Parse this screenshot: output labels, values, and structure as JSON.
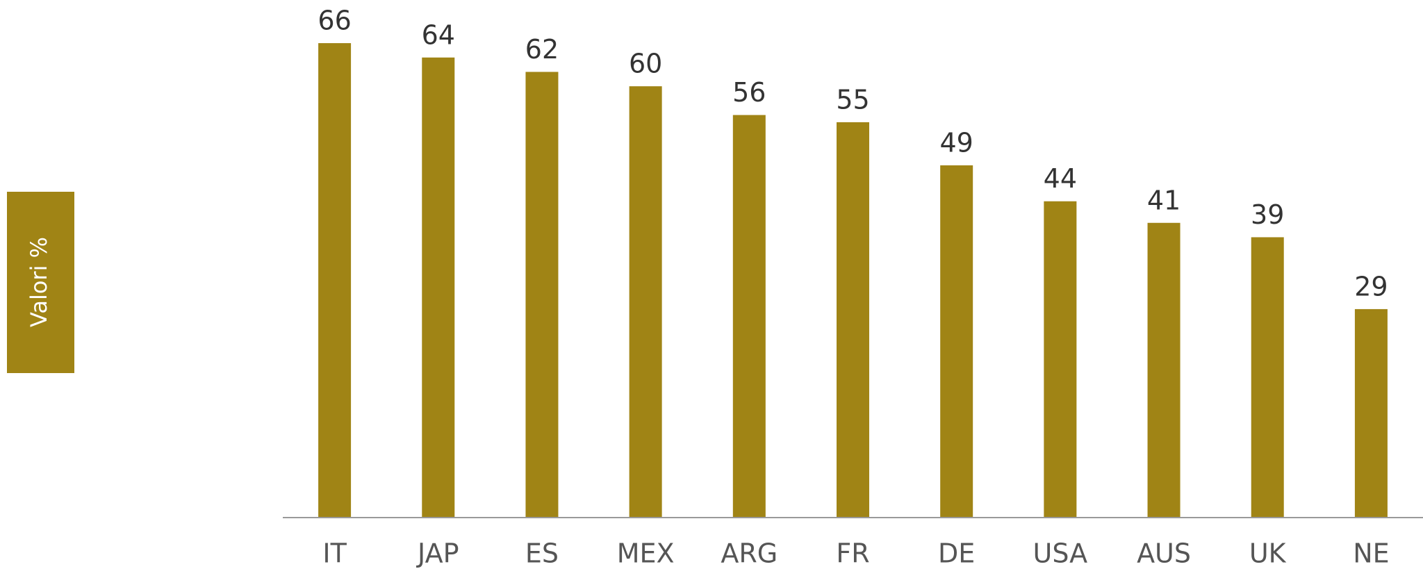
{
  "chart_data": {
    "type": "bar",
    "y_label": "Valori %",
    "categories": [
      "IT",
      "JAP",
      "ES",
      "MEX",
      "ARG",
      "FR",
      "DE",
      "USA",
      "AUS",
      "UK",
      "NE"
    ],
    "values": [
      66,
      64,
      62,
      60,
      56,
      55,
      49,
      44,
      41,
      39,
      29
    ],
    "color": "#a08415",
    "ylim": [
      0,
      72
    ]
  }
}
